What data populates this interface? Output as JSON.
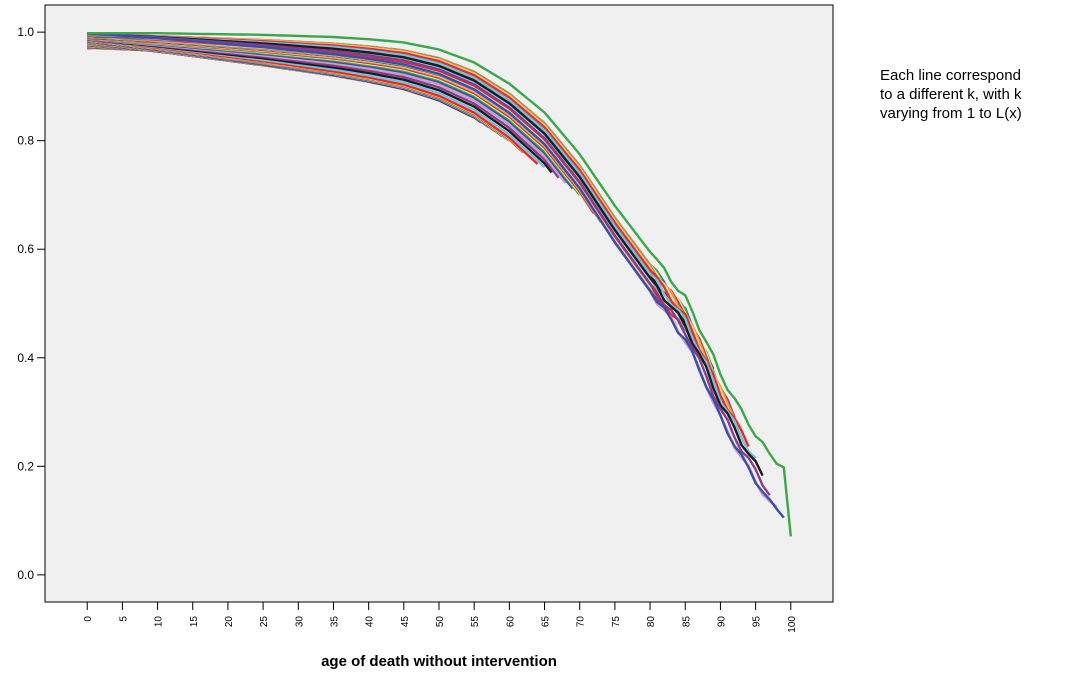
{
  "chart_data": {
    "type": "line",
    "title": "",
    "xlabel": "age of death without intervention",
    "ylabel": "",
    "xlim": [
      -6,
      106
    ],
    "ylim": [
      -0.05,
      1.05
    ],
    "x_ticks": [
      0,
      5,
      10,
      15,
      20,
      25,
      30,
      35,
      40,
      45,
      50,
      55,
      60,
      65,
      70,
      75,
      80,
      85,
      90,
      95,
      100
    ],
    "y_ticks": [
      "0.0",
      "0.2",
      "0.4",
      "0.6",
      "0.8",
      "1.0"
    ],
    "y_tick_values": [
      0,
      0.2,
      0.4,
      0.6,
      0.8,
      1.0
    ],
    "grid": false,
    "legend": "none",
    "background": "#f0f0f0",
    "annotation": [
      "Each line correspond",
      "to a different k, with k",
      "varying from 1 to L(x)"
    ],
    "palette": [
      "#3a4ea8",
      "#3aa84a",
      "#f2e37a",
      "#a8327e",
      "#f09a22",
      "#d8d8a8",
      "#e82a2a",
      "#74c2dc",
      "#1c1c1c",
      "#8a3c8c",
      "#c8a0c8"
    ],
    "series_description": "Family of curves for k = 1 .. L(x); each starts near 1.0 at age 0 and declines with age, with longer curves extending to higher ages. The outermost curves reach age 100 at about 0.06.",
    "outer_envelope": {
      "x": [
        0,
        5,
        10,
        15,
        20,
        25,
        30,
        35,
        40,
        45,
        50,
        55,
        60,
        65,
        70,
        75,
        80,
        85,
        88,
        90,
        93,
        95,
        97,
        99,
        100
      ],
      "y": [
        0.998,
        0.998,
        0.998,
        0.997,
        0.996,
        0.995,
        0.993,
        0.991,
        0.987,
        0.981,
        0.968,
        0.944,
        0.905,
        0.852,
        0.775,
        0.68,
        0.595,
        0.51,
        0.43,
        0.37,
        0.3,
        0.26,
        0.22,
        0.2,
        0.065
      ]
    },
    "endpoints": {
      "x": [
        5,
        10,
        15,
        20,
        25,
        30,
        35,
        40,
        45,
        50,
        55,
        60,
        65,
        70,
        75,
        80,
        84,
        88,
        90,
        95,
        100
      ],
      "y": [
        0.972,
        0.967,
        0.962,
        0.957,
        0.95,
        0.94,
        0.928,
        0.913,
        0.895,
        0.875,
        0.842,
        0.8,
        0.745,
        0.698,
        0.615,
        0.525,
        0.46,
        0.4,
        0.345,
        0.22,
        0.065
      ]
    }
  }
}
